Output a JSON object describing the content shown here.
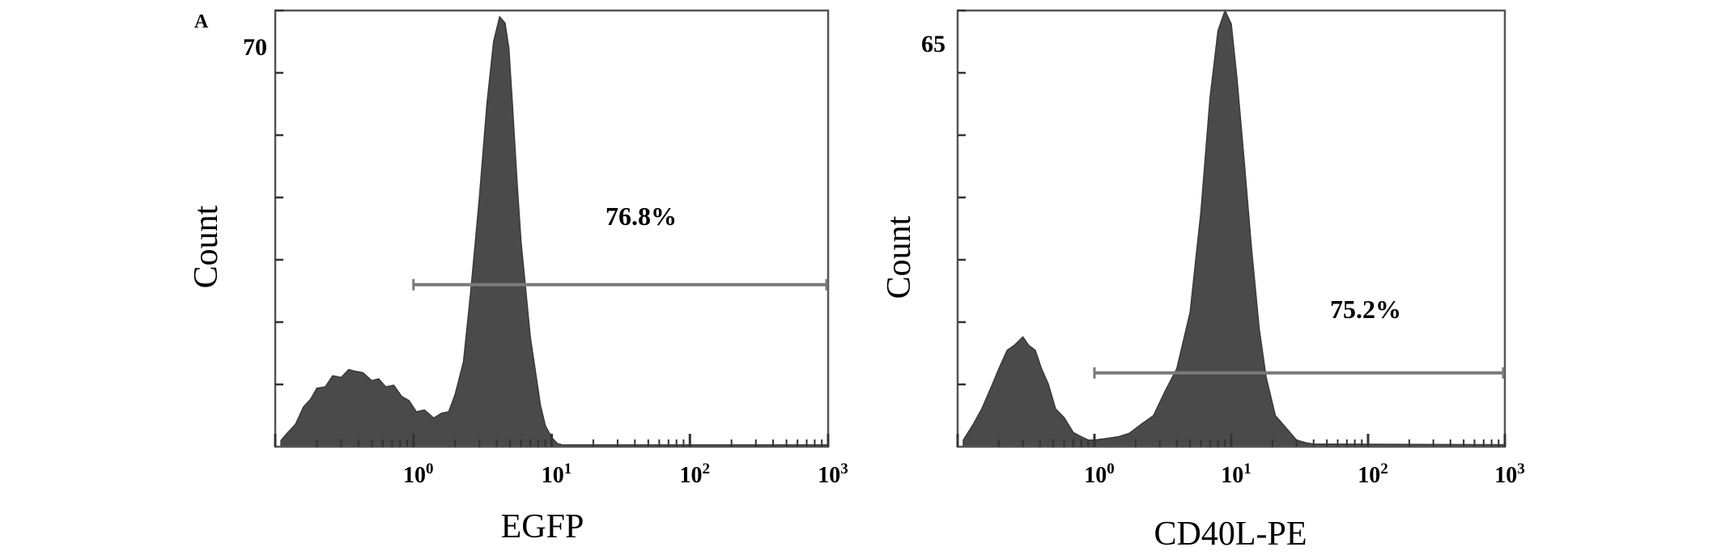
{
  "panel_letter": "A",
  "chart_data": [
    {
      "type": "area",
      "title": "",
      "xlabel": "EGFP",
      "ylabel": "Count",
      "x_scale": "log",
      "xlim": [
        0.1,
        1000
      ],
      "ylim": [
        0,
        70
      ],
      "y_max_label": "70",
      "x_tick_labels": [
        {
          "base": "10",
          "exp": "0"
        },
        {
          "base": "10",
          "exp": "1"
        },
        {
          "base": "10",
          "exp": "2"
        },
        {
          "base": "10",
          "exp": "3"
        }
      ],
      "gate": {
        "label": "76.8%",
        "from": 1,
        "to": 1000,
        "y": 26
      },
      "series": [
        {
          "color": "#4a4a4a",
          "x": [
            0.11,
            0.12,
            0.14,
            0.16,
            0.18,
            0.2,
            0.23,
            0.26,
            0.3,
            0.34,
            0.38,
            0.43,
            0.5,
            0.56,
            0.63,
            0.72,
            0.82,
            0.93,
            1.05,
            1.2,
            1.4,
            1.6,
            1.8,
            2.0,
            2.3,
            2.6,
            3.0,
            3.4,
            3.8,
            4.2,
            4.6,
            4.9,
            5.2,
            5.6,
            6.0,
            6.5,
            7.0,
            7.6,
            8.3,
            9.0,
            10.0,
            11.0,
            12.0,
            1000
          ],
          "y": [
            1,
            2,
            4,
            6,
            8,
            9,
            10,
            11,
            11.5,
            12,
            12.5,
            11.5,
            11,
            10.5,
            10,
            9.5,
            8.5,
            7,
            6,
            5.5,
            5,
            5,
            6,
            8,
            14,
            25,
            40,
            55,
            65,
            69,
            68,
            64,
            55,
            43,
            33,
            25,
            18,
            12,
            7,
            3,
            1.5,
            0.5,
            0.3,
            0.3
          ]
        }
      ]
    },
    {
      "type": "area",
      "title": "",
      "xlabel": "CD40L-PE",
      "ylabel": "Count",
      "x_scale": "log",
      "xlim": [
        0.1,
        1000
      ],
      "ylim": [
        0,
        65
      ],
      "y_max_label": "65",
      "x_tick_labels": [
        {
          "base": "10",
          "exp": "0"
        },
        {
          "base": "10",
          "exp": "1"
        },
        {
          "base": "10",
          "exp": "2"
        },
        {
          "base": "10",
          "exp": "3"
        }
      ],
      "gate": {
        "label": "75.2%",
        "from": 1,
        "to": 1000,
        "y": 11
      },
      "series": [
        {
          "color": "#4a4a4a",
          "x": [
            0.11,
            0.13,
            0.15,
            0.18,
            0.2,
            0.23,
            0.26,
            0.3,
            0.33,
            0.37,
            0.41,
            0.46,
            0.52,
            0.6,
            0.7,
            0.8,
            0.9,
            1.0,
            1.2,
            1.5,
            1.8,
            2.2,
            2.7,
            3.3,
            4.0,
            5.0,
            6.0,
            7.0,
            8.0,
            9.0,
            10.0,
            11.0,
            12.5,
            14.0,
            16.0,
            18.0,
            21.0,
            25.0,
            30.0,
            35.0,
            40.0,
            1000
          ],
          "y": [
            1,
            3,
            6,
            9,
            12,
            14,
            15.5,
            16,
            15.5,
            14,
            12,
            9,
            6,
            4,
            2.5,
            1.5,
            1,
            1,
            1.2,
            1.5,
            2,
            3,
            5,
            8,
            12,
            20,
            35,
            52,
            62,
            65,
            63,
            55,
            42,
            30,
            18,
            10,
            5,
            2.5,
            1,
            0.6,
            0.4,
            0.3
          ]
        }
      ]
    }
  ]
}
